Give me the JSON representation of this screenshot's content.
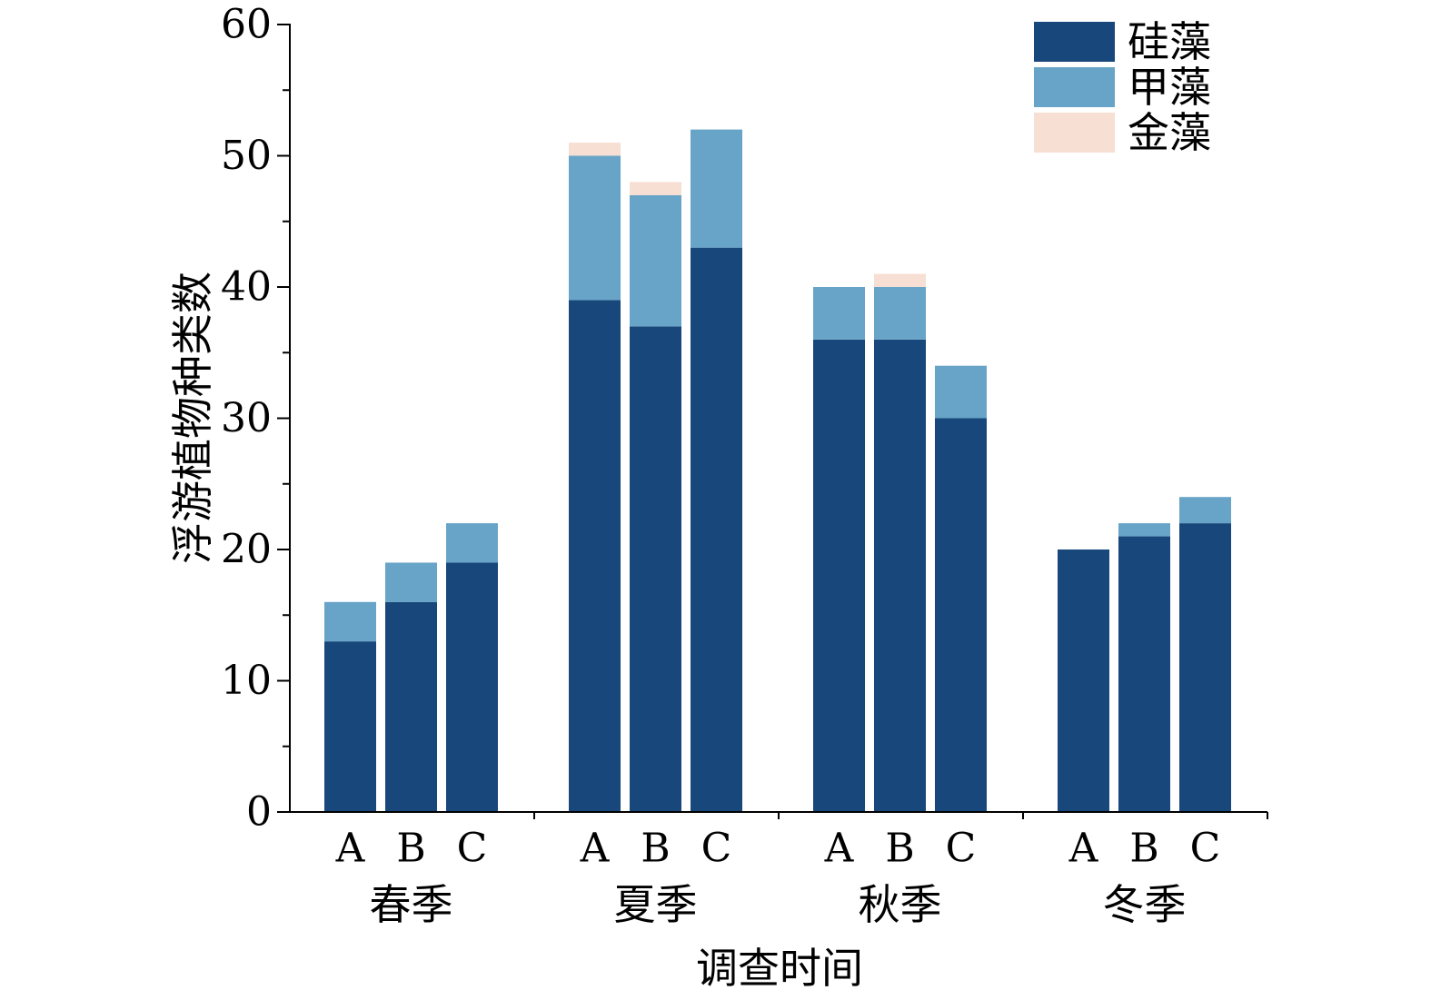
{
  "chart_data": {
    "type": "bar",
    "stacked": true,
    "title": "",
    "xlabel": "调查时间",
    "ylabel": "浮游植物种类数",
    "ylim": [
      0,
      60
    ],
    "yticks": [
      0,
      10,
      20,
      30,
      40,
      50,
      60
    ],
    "grid": false,
    "legend_position": "top-right",
    "groups": [
      "春季",
      "夏季",
      "秋季",
      "冬季"
    ],
    "sites": [
      "A",
      "B",
      "C"
    ],
    "series": [
      {
        "name": "硅藻",
        "color": "#17477b",
        "values": [
          [
            13,
            16,
            19
          ],
          [
            39,
            37,
            43
          ],
          [
            36,
            36,
            30
          ],
          [
            20,
            21,
            22
          ]
        ]
      },
      {
        "name": "甲藻",
        "color": "#67a4c7",
        "values": [
          [
            3,
            3,
            3
          ],
          [
            11,
            10,
            9
          ],
          [
            4,
            4,
            4
          ],
          [
            0,
            1,
            2
          ]
        ]
      },
      {
        "name": "金藻",
        "color": "#f8dfd3",
        "values": [
          [
            0,
            0,
            0
          ],
          [
            1,
            1,
            0
          ],
          [
            0,
            1,
            0
          ],
          [
            0,
            0,
            0
          ]
        ]
      }
    ]
  }
}
